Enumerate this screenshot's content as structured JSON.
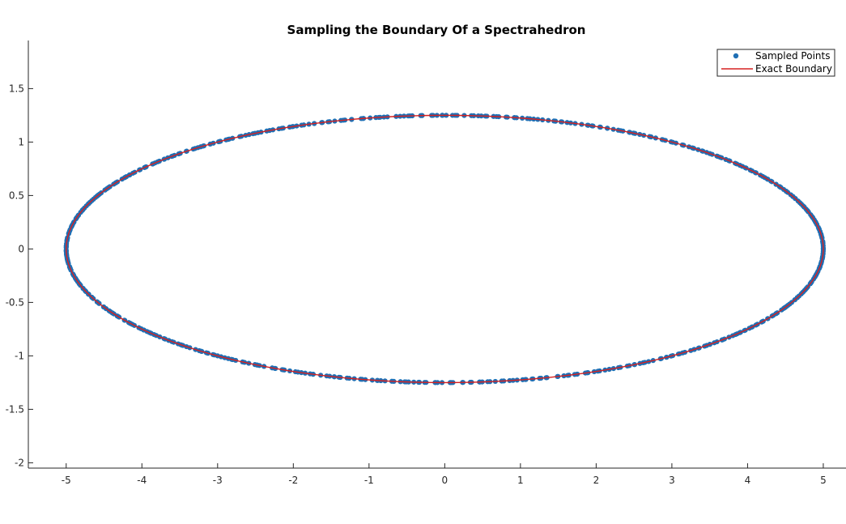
{
  "chart_data": {
    "type": "scatter",
    "title": "Sampling the Boundary Of a Spectrahedron",
    "xlabel": "",
    "ylabel": "",
    "xlim": [
      -5.5,
      5.3
    ],
    "ylim": [
      -2.05,
      1.95
    ],
    "xticks": [
      -5,
      -4,
      -3,
      -2,
      -1,
      0,
      1,
      2,
      3,
      4,
      5
    ],
    "yticks": [
      1.5,
      1,
      0.5,
      0,
      -0.5,
      -1,
      -1.5,
      -2
    ],
    "grid": false,
    "legend_position": "top-right",
    "colors": {
      "points": "#1f6fb4",
      "boundary": "#d62020",
      "axis": "#262626"
    },
    "series": [
      {
        "name": "Sampled Points",
        "kind": "scatter",
        "shape": "ellipse",
        "center": [
          0,
          0
        ],
        "semi_axis_x": 5,
        "semi_axis_y": 1.25,
        "sample_count": 600
      },
      {
        "name": "Exact Boundary",
        "kind": "line",
        "shape": "ellipse",
        "center": [
          0,
          0
        ],
        "semi_axis_x": 5,
        "semi_axis_y": 1.25
      }
    ]
  }
}
